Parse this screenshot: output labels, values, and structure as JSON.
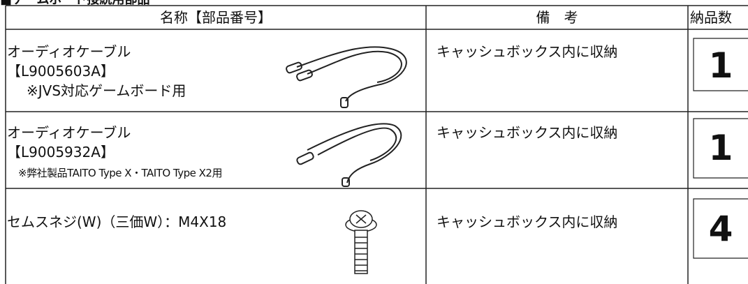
{
  "title": "■ゲームボード接続用部品",
  "table": {
    "headers": [
      "名称【部品番号】",
      "備　考",
      "納品数"
    ],
    "rows": [
      {
        "name": "オーディオケーブル",
        "part": "【L9005603A】",
        "note": "※JVS対応ゲームボード用",
        "remark": "キャッシュボックス内に収納",
        "qty": 1
      },
      {
        "name": "オーディオケーブル",
        "part": "【L9005932A】",
        "note": "※弊社製品TAITO Type X・TAITO Type X2用",
        "remark": "キャッシュボックス内に収納",
        "qty": 1
      },
      {
        "name": "セムスネジ(W)（三価W）：M4X18",
        "remark": "キャッシュボックス内に収納",
        "qty": 4
      }
    ]
  }
}
